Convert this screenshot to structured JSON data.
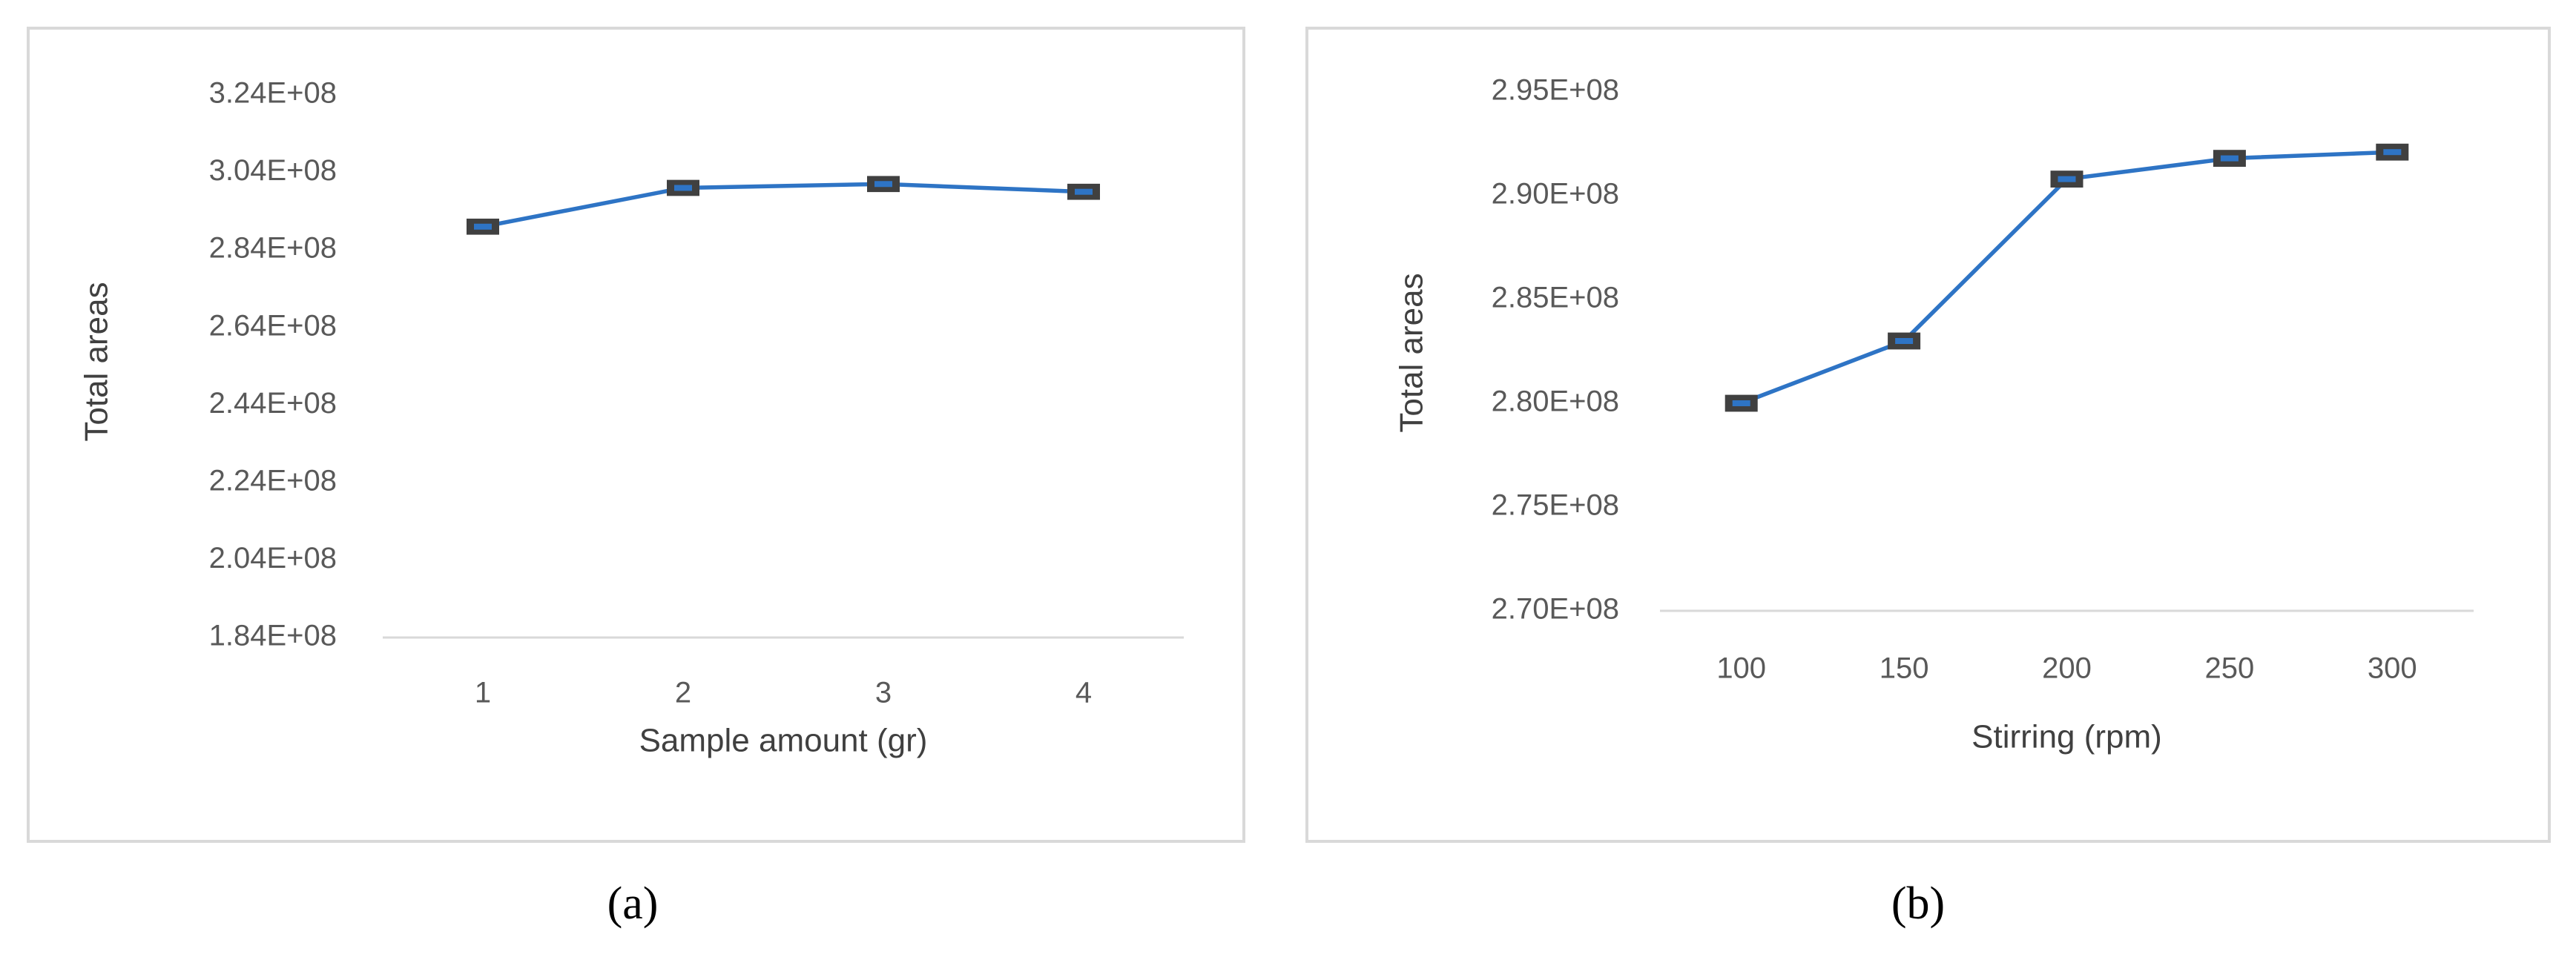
{
  "chart_data": [
    {
      "type": "line",
      "x_label": "Sample amount (gr)",
      "y_label": "Total areas",
      "caption": "(a)",
      "categories": [
        "1",
        "2",
        "3",
        "4"
      ],
      "series": [
        {
          "color": "#2e74c5",
          "values": [
            290000000,
            300000000,
            301000000,
            299000000
          ],
          "errors": [
            1500000,
            1500000,
            1500000,
            1500000
          ]
        }
      ],
      "ylim": [
        184000000,
        324000000
      ],
      "yticks": [
        {
          "value": 184000000,
          "label": "1.84E+08"
        },
        {
          "value": 204000000,
          "label": "2.04E+08"
        },
        {
          "value": 224000000,
          "label": "2.24E+08"
        },
        {
          "value": 244000000,
          "label": "2.44E+08"
        },
        {
          "value": 264000000,
          "label": "2.64E+08"
        },
        {
          "value": 284000000,
          "label": "2.84E+08"
        },
        {
          "value": 304000000,
          "label": "3.04E+08"
        },
        {
          "value": 324000000,
          "label": "3.24E+08"
        }
      ],
      "grid": false
    },
    {
      "type": "line",
      "x_label": "Stirring (rpm)",
      "y_label": "Total areas",
      "caption": "(b)",
      "categories": [
        "100",
        "150",
        "200",
        "250",
        "300"
      ],
      "series": [
        {
          "color": "#2e74c5",
          "values": [
            280000000,
            283000000,
            290800000,
            291800000,
            292100000
          ],
          "errors": [
            300000,
            300000,
            300000,
            300000,
            300000
          ]
        }
      ],
      "ylim": [
        270000000,
        295000000
      ],
      "yticks": [
        {
          "value": 270000000,
          "label": "2.70E+08"
        },
        {
          "value": 275000000,
          "label": "2.75E+08"
        },
        {
          "value": 280000000,
          "label": "2.80E+08"
        },
        {
          "value": 285000000,
          "label": "2.85E+08"
        },
        {
          "value": 290000000,
          "label": "2.90E+08"
        },
        {
          "value": 295000000,
          "label": "2.95E+08"
        }
      ],
      "grid": false
    }
  ]
}
